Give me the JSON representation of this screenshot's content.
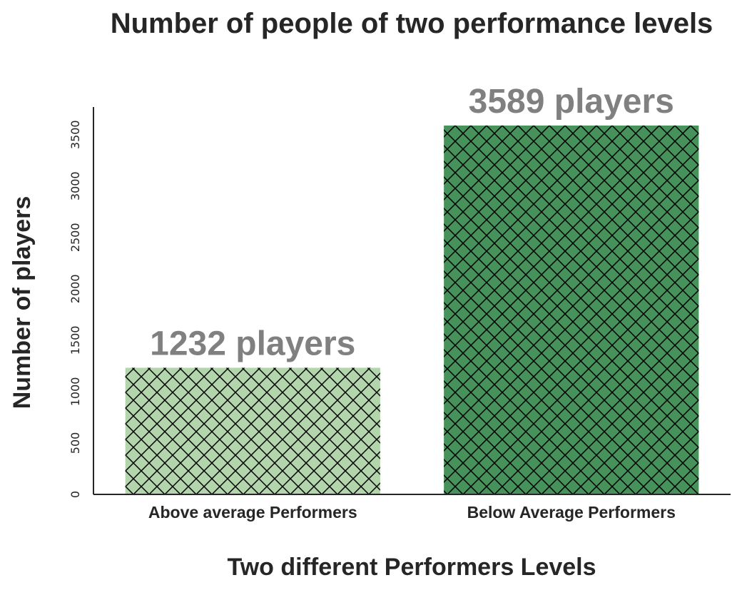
{
  "chart_data": {
    "type": "bar",
    "title": "Number of people of two performance levels",
    "xlabel": "Two different Performers Levels",
    "ylabel": "Number of players",
    "categories": [
      "Above average Performers",
      "Below Average Performers"
    ],
    "values": [
      1232,
      3589
    ],
    "bar_colors": [
      "#b2d5ac",
      "#46925a"
    ],
    "hatch": "cross-diagonal",
    "data_labels": [
      "1232 players",
      "3589 players"
    ],
    "yticks": [
      0,
      500,
      1000,
      1500,
      2000,
      2500,
      3000,
      3500
    ],
    "ylim": [
      0,
      3769
    ],
    "grid": false
  }
}
